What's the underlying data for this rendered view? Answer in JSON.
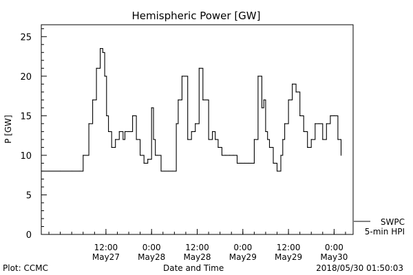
{
  "chart_data": {
    "type": "line",
    "title": "Hemispheric Power [GW]",
    "xlabel": "Date and Time",
    "ylabel": "P [GW]",
    "ylim": [
      0,
      26.5
    ],
    "yticks": [
      0,
      5,
      10,
      15,
      20,
      25
    ],
    "ytick_labels": [
      "0",
      "5",
      "10",
      "15",
      "20",
      "25"
    ],
    "xlim": [
      "2018-05-26 19:00",
      "2018-05-30 05:00"
    ],
    "xticks": [
      "2018-05-27 12:00",
      "2018-05-28 00:00",
      "2018-05-28 12:00",
      "2018-05-29 00:00",
      "2018-05-29 12:00",
      "2018-05-30 00:00"
    ],
    "xtick_labels": [
      {
        "time": "12:00",
        "date": "May27"
      },
      {
        "time": "0:00",
        "date": "May28"
      },
      {
        "time": "12:00",
        "date": "May28"
      },
      {
        "time": "0:00",
        "date": "May29"
      },
      {
        "time": "12:00",
        "date": "May29"
      },
      {
        "time": "0:00",
        "date": "May30"
      }
    ],
    "grid": false,
    "legend_position": "bottom-right, outside plot",
    "legend": [
      {
        "label": "SWPC"
      },
      {
        "label": "5-min HPI"
      }
    ],
    "series": [
      {
        "name": "SWPC",
        "x": [
          "2018-05-26 19:00",
          "2018-05-26 21:00",
          "2018-05-27 00:00",
          "2018-05-27 03:00",
          "2018-05-27 05:00",
          "2018-05-27 06:00",
          "2018-05-27 07:30",
          "2018-05-27 08:30",
          "2018-05-27 09:30",
          "2018-05-27 10:30",
          "2018-05-27 11:10",
          "2018-05-27 11:40",
          "2018-05-27 12:10",
          "2018-05-27 12:40",
          "2018-05-27 13:30",
          "2018-05-27 14:30",
          "2018-05-27 15:30",
          "2018-05-27 16:30",
          "2018-05-27 17:00",
          "2018-05-27 18:00",
          "2018-05-27 19:00",
          "2018-05-27 20:00",
          "2018-05-27 21:00",
          "2018-05-27 22:00",
          "2018-05-27 23:00",
          "2018-05-28 00:00",
          "2018-05-28 00:30",
          "2018-05-28 01:00",
          "2018-05-28 01:30",
          "2018-05-28 02:30",
          "2018-05-28 03:30",
          "2018-05-28 04:30",
          "2018-05-28 05:30",
          "2018-05-28 06:30",
          "2018-05-28 07:00",
          "2018-05-28 08:00",
          "2018-05-28 09:30",
          "2018-05-28 10:30",
          "2018-05-28 11:30",
          "2018-05-28 12:30",
          "2018-05-28 13:30",
          "2018-05-28 15:00",
          "2018-05-28 16:00",
          "2018-05-28 16:45",
          "2018-05-28 17:30",
          "2018-05-28 18:30",
          "2018-05-28 19:30",
          "2018-05-28 20:30",
          "2018-05-28 21:30",
          "2018-05-28 22:30",
          "2018-05-28 23:30",
          "2018-05-29 00:30",
          "2018-05-29 01:30",
          "2018-05-29 03:00",
          "2018-05-29 04:00",
          "2018-05-29 05:00",
          "2018-05-29 05:30",
          "2018-05-29 06:00",
          "2018-05-29 06:30",
          "2018-05-29 07:00",
          "2018-05-29 08:00",
          "2018-05-29 09:00",
          "2018-05-29 10:00",
          "2018-05-29 10:30",
          "2018-05-29 11:00",
          "2018-05-29 12:00",
          "2018-05-29 13:00",
          "2018-05-29 14:00",
          "2018-05-29 15:00",
          "2018-05-29 16:00",
          "2018-05-29 17:00",
          "2018-05-29 18:00",
          "2018-05-29 19:00",
          "2018-05-29 20:00",
          "2018-05-29 21:00",
          "2018-05-29 22:00",
          "2018-05-29 23:00",
          "2018-05-30 00:00",
          "2018-05-30 01:00",
          "2018-05-30 01:50"
        ],
        "y": [
          8,
          8,
          8,
          8,
          8,
          10,
          14,
          17,
          21,
          23.5,
          23,
          20,
          15,
          13,
          11,
          12,
          13,
          12,
          13,
          13,
          15,
          12,
          10,
          9,
          9.5,
          16,
          12,
          10,
          10,
          8,
          8,
          8,
          8,
          14,
          17,
          20,
          12,
          13,
          14,
          21,
          17,
          12,
          13,
          12,
          11,
          10,
          10,
          10,
          10,
          9,
          9,
          9,
          9,
          12,
          20,
          16,
          17,
          13,
          12,
          11,
          9,
          8,
          10,
          12,
          14,
          17,
          19,
          18,
          15,
          13,
          11,
          12,
          14,
          14,
          12,
          14,
          15,
          15,
          12,
          10
        ]
      }
    ]
  },
  "footer": {
    "left": "Plot: CCMC",
    "center": "Date and Time",
    "right": "2018/05/30 01:50:03"
  }
}
